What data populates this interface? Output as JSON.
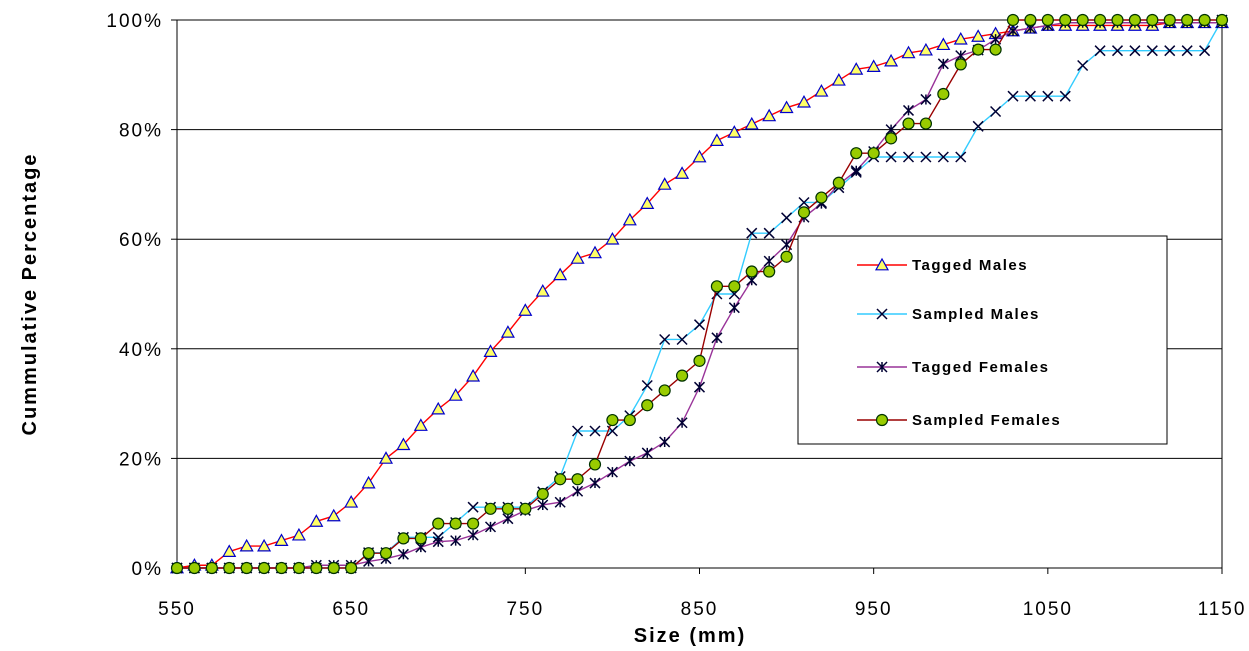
{
  "chart_data": {
    "type": "line",
    "title": "",
    "xlabel": "Size (mm)",
    "ylabel": "Cummulative Percentage",
    "xlim": [
      550,
      1150
    ],
    "ylim": [
      0,
      100
    ],
    "x_ticks": [
      550,
      650,
      750,
      850,
      950,
      1050,
      1150
    ],
    "x_tick_labels": [
      "550",
      "650",
      "750",
      "850",
      "950",
      "1050",
      "1150"
    ],
    "y_ticks": [
      0,
      20,
      40,
      60,
      80,
      100
    ],
    "y_tick_labels": [
      "0%",
      "20%",
      "40%",
      "60%",
      "80%",
      "100%"
    ],
    "grid": "horizontal",
    "legend_position": "center-right",
    "series": [
      {
        "name": "Tagged Males",
        "line_color": "#ff0000",
        "marker": "triangle",
        "marker_fill": "#ffff66",
        "marker_stroke": "#0000cc",
        "x": [
          550,
          560,
          570,
          580,
          590,
          600,
          610,
          620,
          630,
          640,
          650,
          660,
          670,
          680,
          690,
          700,
          710,
          720,
          730,
          740,
          750,
          760,
          770,
          780,
          790,
          800,
          810,
          820,
          830,
          840,
          850,
          860,
          870,
          880,
          890,
          900,
          910,
          920,
          930,
          940,
          950,
          960,
          970,
          980,
          990,
          1000,
          1010,
          1020,
          1030,
          1040,
          1050,
          1060,
          1070,
          1080,
          1090,
          1100,
          1110,
          1120,
          1130,
          1140,
          1150
        ],
        "y": [
          0,
          0.5,
          0.5,
          3,
          4,
          4,
          5,
          6,
          8.5,
          9.5,
          12,
          15.5,
          20,
          22.5,
          26,
          29,
          31.5,
          35,
          39.5,
          43,
          47,
          50.5,
          53.5,
          56.5,
          57.5,
          60,
          63.5,
          66.5,
          70,
          72,
          75,
          78,
          79.5,
          81,
          82.5,
          84,
          85,
          87,
          89,
          91,
          91.5,
          92.5,
          94,
          94.5,
          95.5,
          96.5,
          97,
          97.5,
          98,
          98.5,
          99,
          99,
          99,
          99,
          99,
          99,
          99,
          99.5,
          99.5,
          99.5,
          99.5
        ]
      },
      {
        "name": "Sampled Males",
        "line_color": "#33ccff",
        "marker": "x",
        "marker_stroke": "#000033",
        "x": [
          550,
          560,
          570,
          580,
          590,
          600,
          610,
          620,
          630,
          640,
          650,
          660,
          670,
          680,
          690,
          700,
          710,
          720,
          730,
          740,
          750,
          760,
          770,
          780,
          790,
          800,
          810,
          820,
          830,
          840,
          850,
          860,
          870,
          880,
          890,
          900,
          910,
          920,
          930,
          940,
          950,
          960,
          970,
          980,
          990,
          1000,
          1010,
          1020,
          1030,
          1040,
          1050,
          1060,
          1070,
          1080,
          1090,
          1100,
          1110,
          1120,
          1130,
          1140,
          1150
        ],
        "y": [
          0,
          0,
          0,
          0,
          0,
          0,
          0,
          0,
          0,
          0,
          0,
          2.8,
          2.8,
          5.6,
          5.6,
          5.6,
          8.3,
          11.1,
          11.1,
          11.1,
          11.1,
          13.9,
          16.7,
          25,
          25,
          25,
          27.8,
          33.3,
          41.7,
          41.7,
          44.4,
          50,
          50,
          61.1,
          61.1,
          63.9,
          66.7,
          66.7,
          69.4,
          72.2,
          75,
          75,
          75,
          75,
          75,
          75,
          80.6,
          83.3,
          86.1,
          86.1,
          86.1,
          86.1,
          91.7,
          94.4,
          94.4,
          94.4,
          94.4,
          94.4,
          94.4,
          94.4,
          100
        ]
      },
      {
        "name": "Tagged Females",
        "line_color": "#993399",
        "marker": "star",
        "marker_stroke": "#000033",
        "x": [
          550,
          560,
          570,
          580,
          590,
          600,
          610,
          620,
          630,
          640,
          650,
          660,
          670,
          680,
          690,
          700,
          710,
          720,
          730,
          740,
          750,
          760,
          770,
          780,
          790,
          800,
          810,
          820,
          830,
          840,
          850,
          860,
          870,
          880,
          890,
          900,
          910,
          920,
          930,
          940,
          950,
          960,
          970,
          980,
          990,
          1000,
          1010,
          1020,
          1030,
          1040,
          1050,
          1060,
          1070,
          1080,
          1090,
          1100,
          1110,
          1120,
          1130,
          1140,
          1150
        ],
        "y": [
          0,
          0,
          0,
          0,
          0,
          0,
          0,
          0,
          0.5,
          0.5,
          0.5,
          1.2,
          1.7,
          2.5,
          3.8,
          4.8,
          5,
          6,
          7.5,
          9,
          10.5,
          11.5,
          12,
          14,
          15.5,
          17.5,
          19.5,
          21,
          23,
          26.5,
          33,
          42,
          47.5,
          52.5,
          56,
          59,
          64,
          66.5,
          70,
          72.5,
          76,
          80,
          83.5,
          85.5,
          92,
          93.5,
          94.5,
          96.5,
          98,
          98.5,
          99,
          99.5,
          99.5,
          99.5,
          99.5,
          99.5,
          99.5,
          99.5,
          99.5,
          99.5,
          99.5
        ]
      },
      {
        "name": "Sampled Females",
        "line_color": "#990000",
        "marker": "circle",
        "marker_fill": "#99cc00",
        "marker_stroke": "#003300",
        "x": [
          550,
          560,
          570,
          580,
          590,
          600,
          610,
          620,
          630,
          640,
          650,
          660,
          670,
          680,
          690,
          700,
          710,
          720,
          730,
          740,
          750,
          760,
          770,
          780,
          790,
          800,
          810,
          820,
          830,
          840,
          850,
          860,
          870,
          880,
          890,
          900,
          910,
          920,
          930,
          940,
          950,
          960,
          970,
          980,
          990,
          1000,
          1010,
          1020,
          1030,
          1040,
          1050,
          1060,
          1070,
          1080,
          1090,
          1100,
          1110,
          1120,
          1130,
          1140,
          1150
        ],
        "y": [
          0,
          0,
          0,
          0,
          0,
          0,
          0,
          0,
          0,
          0,
          0,
          2.7,
          2.7,
          5.4,
          5.4,
          8.1,
          8.1,
          8.1,
          10.8,
          10.8,
          10.8,
          13.5,
          16.2,
          16.2,
          18.9,
          27,
          27,
          29.7,
          32.4,
          35.1,
          37.8,
          51.4,
          51.4,
          54.1,
          54.1,
          56.8,
          64.9,
          67.6,
          70.3,
          75.7,
          75.7,
          78.4,
          81.1,
          81.1,
          86.5,
          91.9,
          94.6,
          94.6,
          100,
          100,
          100,
          100,
          100,
          100,
          100,
          100,
          100,
          100,
          100,
          100,
          100
        ]
      }
    ]
  }
}
